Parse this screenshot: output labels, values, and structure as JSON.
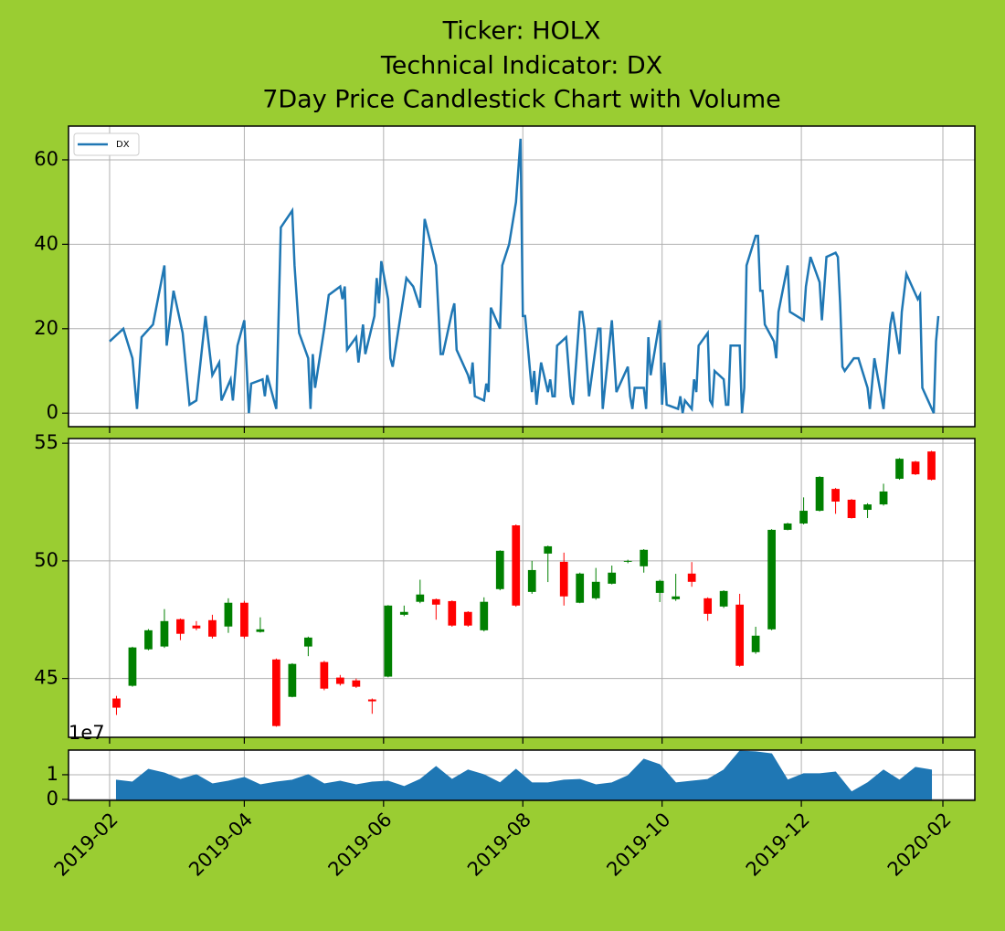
{
  "chart_data": [
    {
      "type": "line",
      "title": [
        "Ticker: HOLX",
        "Technical Indicator: DX",
        "7Day Price Candlestick Chart with Volume"
      ],
      "x": [
        "2019-02-01",
        "2019-02-07",
        "2019-02-11",
        "2019-02-13",
        "2019-02-15",
        "2019-02-20",
        "2019-02-25",
        "2019-02-26",
        "2019-03-01",
        "2019-03-05",
        "2019-03-08",
        "2019-03-11",
        "2019-03-15",
        "2019-03-18",
        "2019-03-21",
        "2019-03-22",
        "2019-03-26",
        "2019-03-27",
        "2019-03-29",
        "2019-04-01",
        "2019-04-03",
        "2019-04-04",
        "2019-04-09",
        "2019-04-10",
        "2019-04-11",
        "2019-04-15",
        "2019-04-17",
        "2019-04-22",
        "2019-04-23",
        "2019-04-25",
        "2019-04-29",
        "2019-04-30",
        "2019-05-01",
        "2019-05-02",
        "2019-05-06",
        "2019-05-08",
        "2019-05-13",
        "2019-05-14",
        "2019-05-15",
        "2019-05-16",
        "2019-05-20",
        "2019-05-21",
        "2019-05-23",
        "2019-05-24",
        "2019-05-28",
        "2019-05-29",
        "2019-05-30",
        "2019-05-31",
        "2019-06-03",
        "2019-06-04",
        "2019-06-05",
        "2019-06-11",
        "2019-06-14",
        "2019-06-17",
        "2019-06-19",
        "2019-06-24",
        "2019-06-26",
        "2019-06-27",
        "2019-07-01",
        "2019-07-02",
        "2019-07-03",
        "2019-07-08",
        "2019-07-09",
        "2019-07-10",
        "2019-07-11",
        "2019-07-15",
        "2019-07-16",
        "2019-07-17",
        "2019-07-18",
        "2019-07-22",
        "2019-07-23",
        "2019-07-26",
        "2019-07-29",
        "2019-07-31",
        "2019-08-01",
        "2019-08-02",
        "2019-08-05",
        "2019-08-06",
        "2019-08-07",
        "2019-08-09",
        "2019-08-12",
        "2019-08-13",
        "2019-08-14",
        "2019-08-15",
        "2019-08-16",
        "2019-08-20",
        "2019-08-22",
        "2019-08-23",
        "2019-08-26",
        "2019-08-27",
        "2019-08-28",
        "2019-08-30",
        "2019-09-03",
        "2019-09-04",
        "2019-09-05",
        "2019-09-09",
        "2019-09-11",
        "2019-09-16",
        "2019-09-17",
        "2019-09-18",
        "2019-09-19",
        "2019-09-23",
        "2019-09-24",
        "2019-09-25",
        "2019-09-26",
        "2019-09-30",
        "2019-10-01",
        "2019-10-02",
        "2019-10-03",
        "2019-10-08",
        "2019-10-09",
        "2019-10-10",
        "2019-10-11",
        "2019-10-14",
        "2019-10-15",
        "2019-10-16",
        "2019-10-17",
        "2019-10-21",
        "2019-10-22",
        "2019-10-23",
        "2019-10-24",
        "2019-10-28",
        "2019-10-29",
        "2019-10-30",
        "2019-10-31",
        "2019-11-04",
        "2019-11-05",
        "2019-11-06",
        "2019-11-07",
        "2019-11-11",
        "2019-11-12",
        "2019-11-13",
        "2019-11-14",
        "2019-11-15",
        "2019-11-19",
        "2019-11-20",
        "2019-11-21",
        "2019-11-25",
        "2019-11-26",
        "2019-11-29",
        "2019-12-02",
        "2019-12-03",
        "2019-12-05",
        "2019-12-09",
        "2019-12-10",
        "2019-12-12",
        "2019-12-16",
        "2019-12-17",
        "2019-12-18",
        "2019-12-19",
        "2019-12-20",
        "2019-12-24",
        "2019-12-26",
        "2019-12-30",
        "2019-12-31",
        "2020-01-02",
        "2020-01-06",
        "2020-01-07",
        "2020-01-09",
        "2020-01-10",
        "2020-01-13",
        "2020-01-14",
        "2020-01-16",
        "2020-01-21",
        "2020-01-22",
        "2020-01-23",
        "2020-01-28",
        "2020-01-29",
        "2020-01-30"
      ],
      "series": [
        {
          "name": "DX",
          "color": "#1f77b4",
          "values": [
            17,
            20,
            13,
            1,
            18,
            21,
            35,
            16,
            29,
            19,
            2,
            3,
            23,
            9,
            12,
            3,
            8,
            3,
            16,
            22,
            0,
            7,
            8,
            4,
            9,
            1,
            44,
            48,
            35,
            19,
            13,
            1,
            14,
            6,
            20,
            28,
            30,
            27,
            30,
            15,
            18,
            12,
            21,
            14,
            23,
            32,
            26,
            36,
            27,
            13,
            11,
            32,
            30,
            25,
            46,
            35,
            14,
            14,
            24,
            26,
            15,
            9,
            7,
            12,
            4,
            3,
            7,
            5,
            25,
            20,
            35,
            40,
            50,
            65,
            23,
            23,
            5,
            10,
            2,
            12,
            5,
            8,
            4,
            4,
            16,
            18,
            4,
            2,
            24,
            24,
            20,
            4,
            20,
            20,
            1,
            22,
            5,
            11,
            4,
            1,
            6,
            6,
            1,
            18,
            9,
            22,
            2,
            12,
            2,
            1,
            4,
            0,
            3,
            1,
            8,
            5,
            16,
            19,
            3,
            2,
            10,
            8,
            2,
            2,
            16,
            16,
            0,
            6,
            35,
            42,
            42,
            29,
            29,
            21,
            17,
            13,
            24,
            35,
            24,
            23,
            22,
            30,
            37,
            31,
            22,
            37,
            38,
            37,
            26,
            11,
            10,
            13,
            13,
            6,
            1,
            13,
            1,
            8,
            21,
            24,
            14,
            24,
            33,
            27,
            28,
            6,
            0,
            17,
            23
          ]
        }
      ],
      "xlim": [
        "2019-01-14",
        "2020-02-15"
      ],
      "xticks": [
        "2019-02",
        "2019-04",
        "2019-06",
        "2019-08",
        "2019-10",
        "2019-12",
        "2020-02"
      ],
      "ylim": [
        -3.2,
        68
      ],
      "yticks": [
        0,
        20,
        40,
        60
      ],
      "grid": true,
      "legend": "upper left"
    },
    {
      "type": "candlestick",
      "x": [
        "2019-02-04",
        "2019-02-11",
        "2019-02-18",
        "2019-02-25",
        "2019-03-04",
        "2019-03-11",
        "2019-03-18",
        "2019-03-25",
        "2019-04-01",
        "2019-04-08",
        "2019-04-15",
        "2019-04-22",
        "2019-04-29",
        "2019-05-06",
        "2019-05-13",
        "2019-05-20",
        "2019-05-27",
        "2019-06-03",
        "2019-06-10",
        "2019-06-17",
        "2019-06-24",
        "2019-07-01",
        "2019-07-08",
        "2019-07-15",
        "2019-07-22",
        "2019-07-29",
        "2019-08-05",
        "2019-08-12",
        "2019-08-19",
        "2019-08-26",
        "2019-09-02",
        "2019-09-09",
        "2019-09-16",
        "2019-09-23",
        "2019-09-30",
        "2019-10-07",
        "2019-10-14",
        "2019-10-21",
        "2019-10-28",
        "2019-11-04",
        "2019-11-11",
        "2019-11-18",
        "2019-11-25",
        "2019-12-02",
        "2019-12-09",
        "2019-12-16",
        "2019-12-23",
        "2019-12-30",
        "2020-01-06",
        "2020-01-13",
        "2020-01-20",
        "2020-01-27"
      ],
      "open": [
        44.15,
        44.69,
        46.24,
        46.36,
        47.52,
        47.25,
        47.48,
        47.21,
        48.22,
        46.98,
        45.81,
        44.22,
        46.36,
        45.7,
        45.04,
        44.92,
        44.11,
        45.08,
        47.71,
        48.26,
        48.37,
        48.29,
        47.83,
        47.05,
        48.8,
        51.51,
        48.68,
        50.31,
        49.96,
        48.22,
        48.41,
        49.03,
        49.96,
        49.77,
        48.64,
        48.37,
        49.46,
        48.41,
        48.06,
        48.14,
        46.12,
        47.09,
        51.32,
        51.59,
        52.13,
        53.06,
        52.6,
        52.17,
        52.4,
        53.49,
        54.22,
        54.65
      ],
      "high": [
        44.26,
        46.35,
        47.1,
        47.95,
        47.55,
        47.44,
        47.71,
        48.41,
        48.3,
        47.6,
        45.85,
        45.65,
        46.78,
        45.75,
        45.15,
        45.0,
        44.15,
        48.12,
        48.1,
        49.2,
        48.4,
        48.32,
        47.86,
        48.45,
        50.45,
        51.55,
        50.0,
        50.65,
        50.35,
        49.5,
        49.7,
        49.8,
        50.05,
        50.5,
        49.2,
        49.45,
        49.95,
        48.45,
        48.75,
        48.6,
        47.2,
        51.35,
        51.62,
        52.7,
        53.6,
        53.1,
        52.63,
        52.45,
        53.28,
        54.37,
        54.25,
        54.68
      ],
      "low": [
        43.45,
        44.65,
        46.2,
        46.3,
        46.63,
        47.05,
        46.7,
        46.94,
        46.7,
        46.95,
        42.95,
        44.2,
        45.95,
        44.5,
        44.7,
        44.6,
        43.5,
        45.05,
        47.65,
        48.2,
        47.5,
        47.2,
        47.2,
        47.0,
        48.75,
        48.05,
        48.6,
        49.1,
        48.1,
        48.2,
        48.35,
        49.0,
        49.9,
        49.5,
        48.25,
        48.3,
        48.9,
        47.45,
        48.0,
        45.5,
        46.05,
        47.05,
        51.3,
        51.55,
        52.1,
        52.0,
        51.8,
        51.82,
        52.35,
        53.45,
        53.65,
        53.42
      ],
      "close": [
        43.76,
        46.32,
        47.05,
        47.44,
        46.9,
        47.13,
        46.78,
        48.22,
        46.78,
        47.09,
        42.98,
        45.62,
        46.74,
        44.57,
        44.77,
        44.65,
        44.03,
        48.1,
        47.83,
        48.57,
        48.14,
        47.25,
        47.25,
        48.26,
        50.43,
        48.1,
        49.61,
        50.62,
        48.49,
        49.46,
        49.11,
        49.5,
        50.0,
        50.47,
        49.15,
        48.49,
        49.11,
        47.75,
        48.72,
        45.54,
        46.82,
        51.32,
        51.59,
        52.13,
        53.57,
        52.52,
        51.82,
        52.4,
        52.95,
        54.34,
        53.68,
        53.45
      ],
      "up_color": "green",
      "down_color": "red",
      "xlim": [
        "2019-01-14",
        "2020-02-15"
      ],
      "xticks": [
        "2019-02",
        "2019-04",
        "2019-06",
        "2019-08",
        "2019-10",
        "2019-12",
        "2020-02"
      ],
      "ylim": [
        42.5,
        55.2
      ],
      "yticks": [
        45,
        50,
        55
      ],
      "grid": true
    },
    {
      "type": "area",
      "x": [
        "2019-02-04",
        "2019-02-11",
        "2019-02-18",
        "2019-02-25",
        "2019-03-04",
        "2019-03-11",
        "2019-03-18",
        "2019-03-25",
        "2019-04-01",
        "2019-04-08",
        "2019-04-15",
        "2019-04-22",
        "2019-04-29",
        "2019-05-06",
        "2019-05-13",
        "2019-05-20",
        "2019-05-27",
        "2019-06-03",
        "2019-06-10",
        "2019-06-17",
        "2019-06-24",
        "2019-07-01",
        "2019-07-08",
        "2019-07-15",
        "2019-07-22",
        "2019-07-29",
        "2019-08-05",
        "2019-08-12",
        "2019-08-19",
        "2019-08-26",
        "2019-09-02",
        "2019-09-09",
        "2019-09-16",
        "2019-09-23",
        "2019-09-30",
        "2019-10-07",
        "2019-10-14",
        "2019-10-21",
        "2019-10-28",
        "2019-11-04",
        "2019-11-11",
        "2019-11-18",
        "2019-11-25",
        "2019-12-02",
        "2019-12-09",
        "2019-12-16",
        "2019-12-23",
        "2019-12-30",
        "2020-01-06",
        "2020-01-13",
        "2020-01-20",
        "2020-01-27"
      ],
      "values": [
        0.78,
        0.7,
        1.22,
        1.07,
        0.81,
        1.0,
        0.63,
        0.74,
        0.89,
        0.59,
        0.7,
        0.78,
        1.0,
        0.63,
        0.74,
        0.59,
        0.7,
        0.74,
        0.52,
        0.81,
        1.33,
        0.81,
        1.19,
        1.0,
        0.67,
        1.22,
        0.67,
        0.67,
        0.78,
        0.81,
        0.59,
        0.67,
        0.96,
        1.63,
        1.41,
        0.67,
        0.74,
        0.81,
        1.19,
        1.96,
        1.93,
        1.85,
        0.78,
        1.04,
        1.04,
        1.11,
        0.3,
        0.67,
        1.19,
        0.78,
        1.3,
        1.19
      ],
      "color": "#1f77b4",
      "offset_label": "1e7",
      "xlim": [
        "2019-01-14",
        "2020-02-15"
      ],
      "xticks": [
        "2019-02",
        "2019-04",
        "2019-06",
        "2019-08",
        "2019-10",
        "2019-12",
        "2020-02"
      ],
      "ylim": [
        -0.04,
        2.0
      ],
      "yticks": [
        0,
        1
      ],
      "grid": true
    }
  ]
}
